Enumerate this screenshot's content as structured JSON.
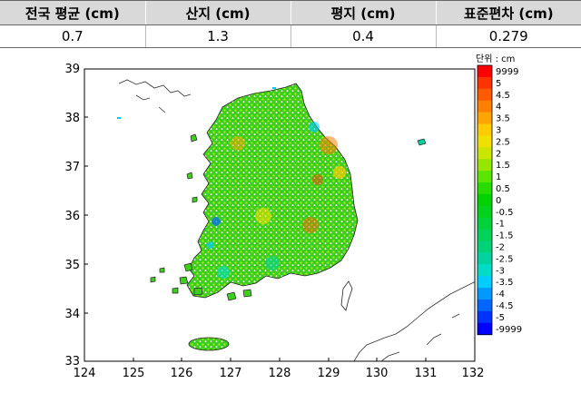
{
  "table": {
    "headers": [
      "전국 평균 (cm)",
      "산지 (cm)",
      "평지 (cm)",
      "표준편차 (cm)"
    ],
    "values": [
      "0.7",
      "1.3",
      "0.4",
      "0.279"
    ]
  },
  "map": {
    "x_ticks": [
      "124",
      "125",
      "126",
      "127",
      "128",
      "129",
      "130",
      "131",
      "132"
    ],
    "y_ticks": [
      "39",
      "38",
      "37",
      "36",
      "35",
      "34",
      "33"
    ],
    "legend_title": "단위 : cm",
    "legend_labels": [
      "9999",
      "5",
      "4.5",
      "4",
      "3.5",
      "3",
      "2.5",
      "2",
      "1.5",
      "1",
      "0.5",
      "0",
      "-0.5",
      "-1",
      "-1.5",
      "-2",
      "-2.5",
      "-3",
      "-3.5",
      "-4",
      "-4.5",
      "-5",
      "-9999"
    ],
    "legend_colors": [
      "#ff0000",
      "#ff3300",
      "#ff5a00",
      "#ff7f00",
      "#ffa500",
      "#ffcc00",
      "#f0e000",
      "#c8e600",
      "#96e600",
      "#5ae600",
      "#28dc00",
      "#00d200",
      "#00d21e",
      "#00d23c",
      "#00d25a",
      "#00d278",
      "#00d2a0",
      "#00dcc8",
      "#00ccff",
      "#0099ff",
      "#0066ff",
      "#0033ff",
      "#0000ff"
    ]
  }
}
